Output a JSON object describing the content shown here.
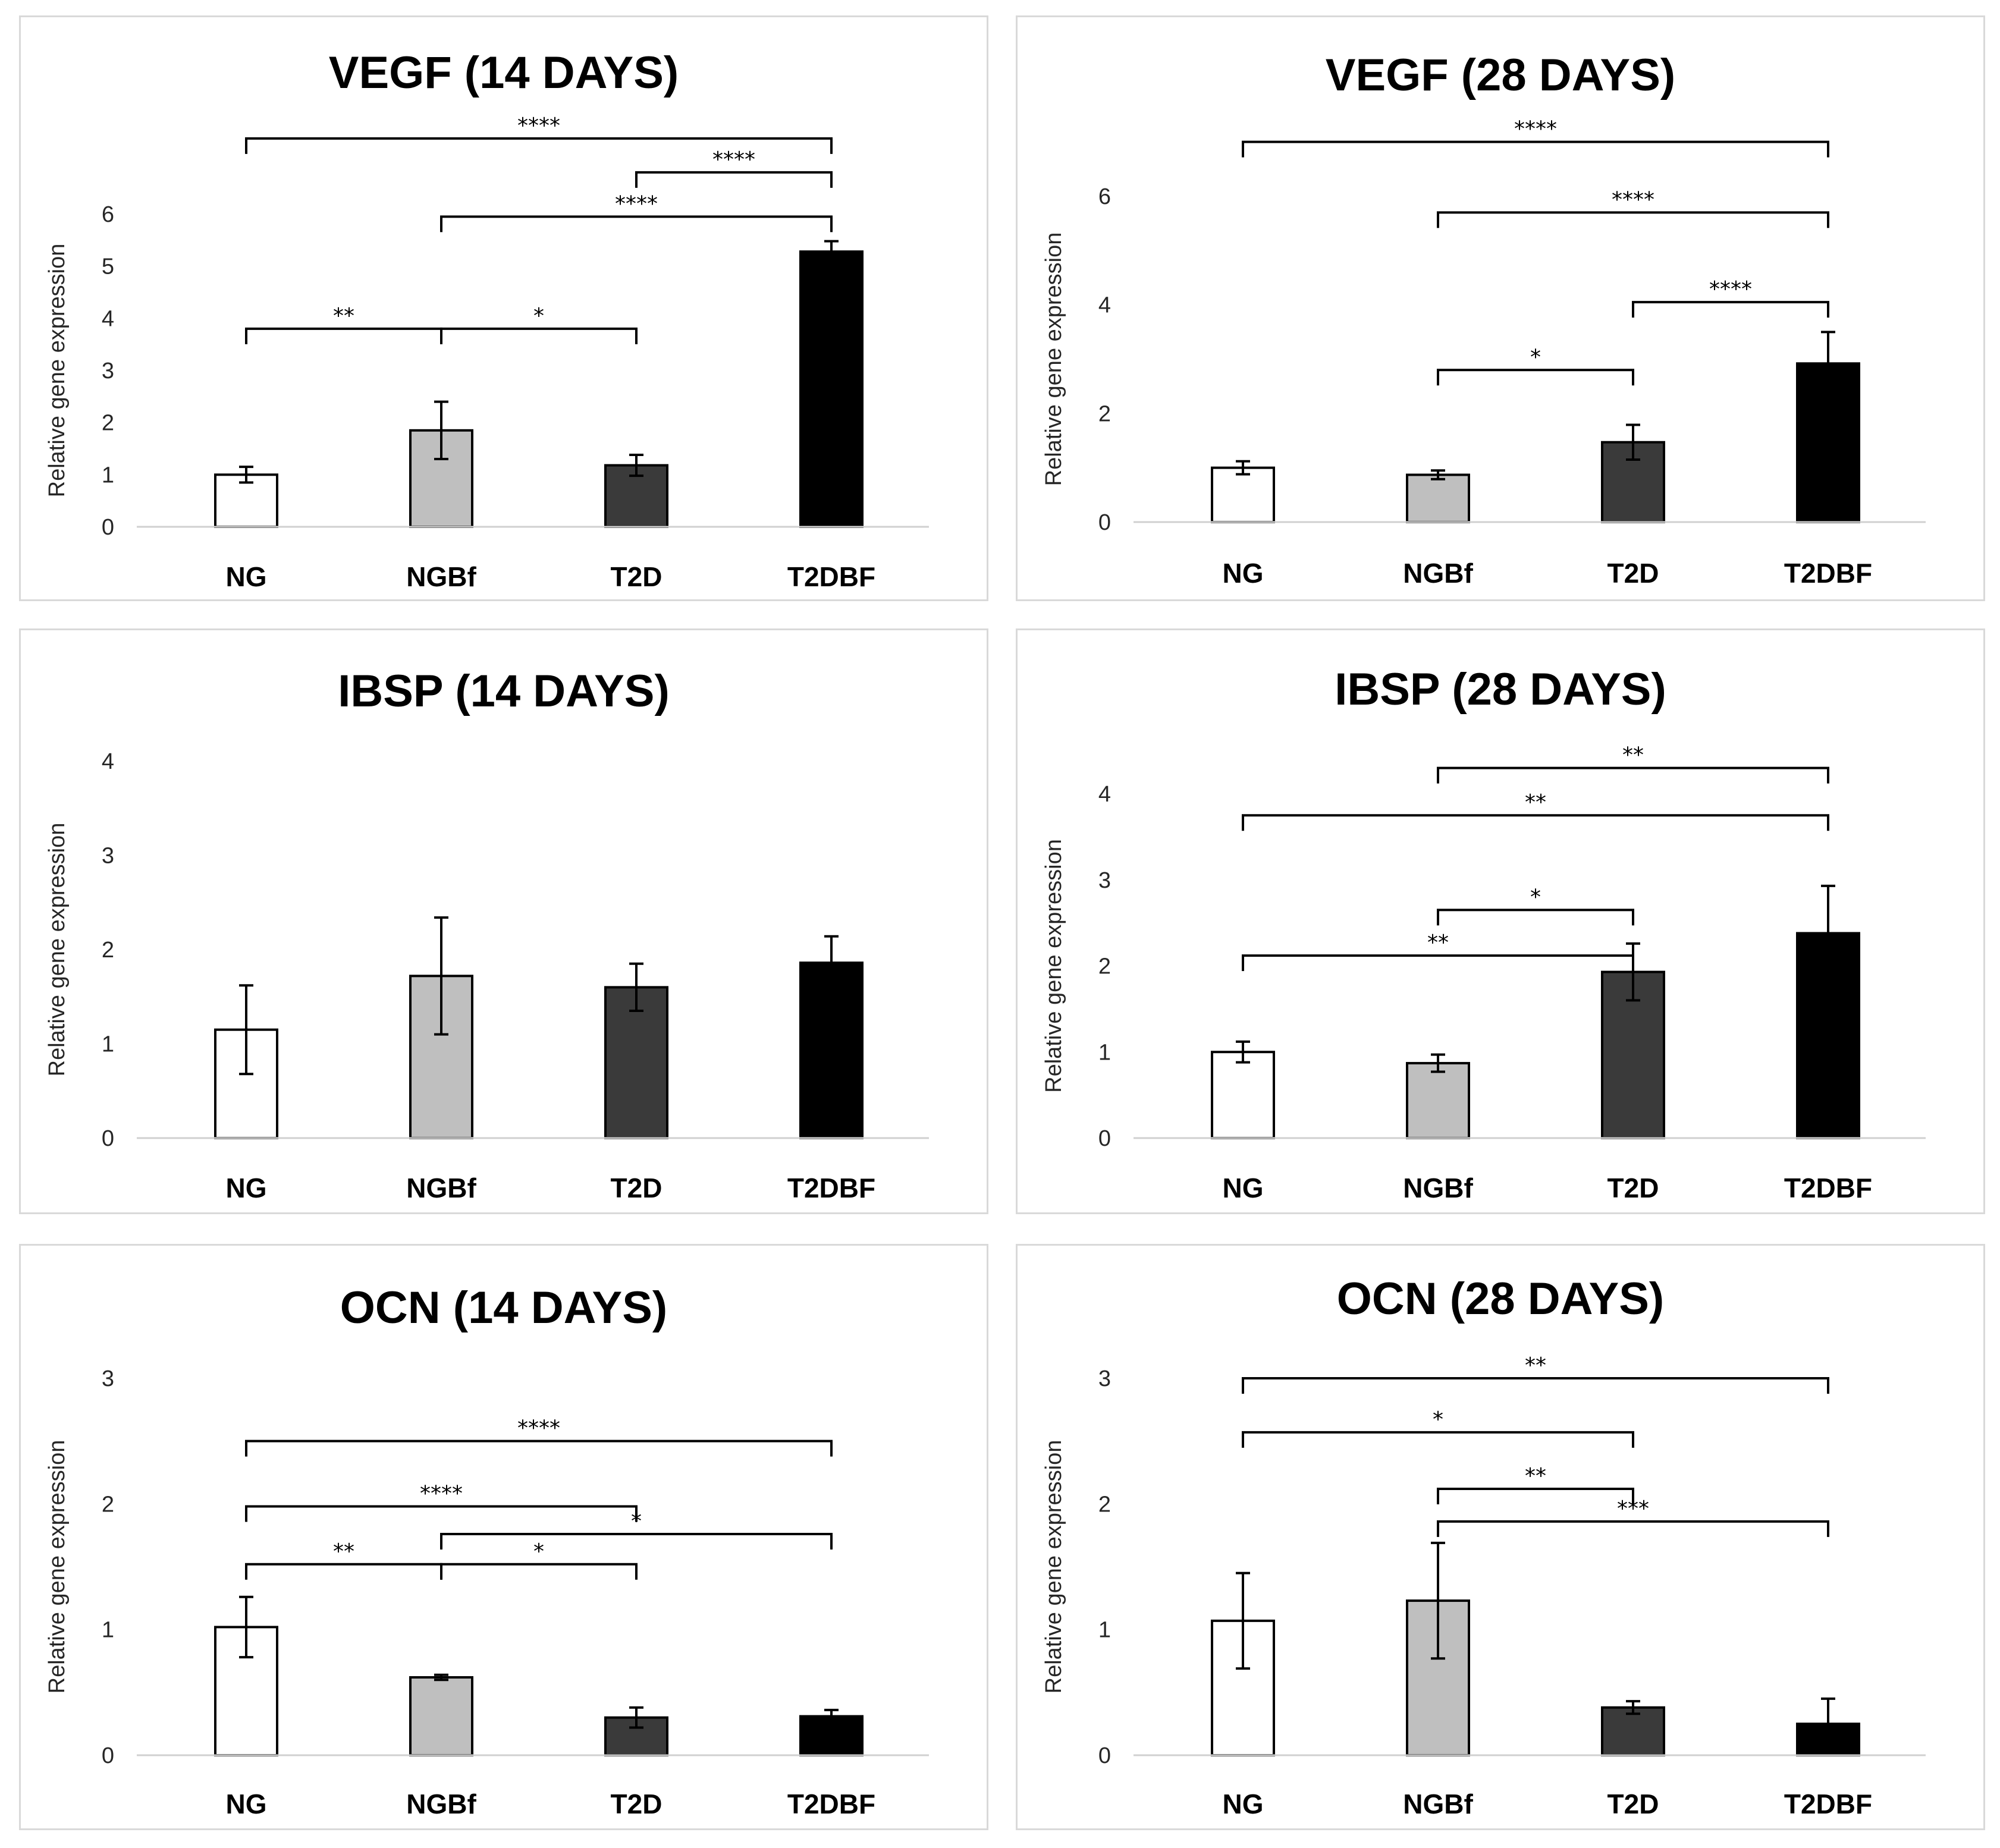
{
  "chart_data": [
    {
      "type": "bar",
      "title": "VEGF (14 DAYS)",
      "ylabel": "Relative gene expression",
      "categories": [
        "NG",
        "NGBf",
        "T2D",
        "T2DBF"
      ],
      "values": [
        1.0,
        1.85,
        1.18,
        5.28
      ],
      "errors": [
        0.15,
        0.55,
        0.2,
        0.2
      ],
      "colors": [
        "#ffffff",
        "#bfbfbf",
        "#3a3a3a",
        "#000000"
      ],
      "ylim": [
        0,
        6
      ],
      "yticks": [
        0,
        1,
        2,
        3,
        4,
        5,
        6
      ],
      "significance": [
        {
          "from": 0,
          "to": 3,
          "y": 7.45,
          "label": "****"
        },
        {
          "from": 2,
          "to": 3,
          "y": 6.8,
          "label": "****"
        },
        {
          "from": 1,
          "to": 3,
          "y": 5.95,
          "label": "****"
        },
        {
          "from": 0,
          "to": 1,
          "y": 3.8,
          "label": "**"
        },
        {
          "from": 1,
          "to": 2,
          "y": 3.8,
          "label": "*"
        }
      ]
    },
    {
      "type": "bar",
      "title": "VEGF (28 DAYS)",
      "ylabel": "Relative gene expression",
      "categories": [
        "NG",
        "NGBf",
        "T2D",
        "T2DBF"
      ],
      "values": [
        1.0,
        0.87,
        1.47,
        2.92
      ],
      "errors": [
        0.12,
        0.08,
        0.32,
        0.58
      ],
      "colors": [
        "#ffffff",
        "#bfbfbf",
        "#3a3a3a",
        "#000000"
      ],
      "ylim": [
        0,
        6
      ],
      "yticks": [
        0,
        2,
        4,
        6
      ],
      "significance": [
        {
          "from": 0,
          "to": 3,
          "y": 7.0,
          "label": "****"
        },
        {
          "from": 1,
          "to": 3,
          "y": 5.7,
          "label": "****"
        },
        {
          "from": 2,
          "to": 3,
          "y": 4.05,
          "label": "****"
        },
        {
          "from": 1,
          "to": 2,
          "y": 2.8,
          "label": "*"
        }
      ]
    },
    {
      "type": "bar",
      "title": "IBSP (14 DAYS)",
      "ylabel": "Relative gene expression",
      "categories": [
        "NG",
        "NGBf",
        "T2D",
        "T2DBF"
      ],
      "values": [
        1.15,
        1.72,
        1.6,
        1.86
      ],
      "errors": [
        0.47,
        0.62,
        0.25,
        0.28
      ],
      "colors": [
        "#ffffff",
        "#bfbfbf",
        "#3a3a3a",
        "#000000"
      ],
      "ylim": [
        0,
        4
      ],
      "yticks": [
        0,
        1,
        2,
        3,
        4
      ],
      "significance": []
    },
    {
      "type": "bar",
      "title": "IBSP (28 DAYS)",
      "ylabel": "Relative gene expression",
      "categories": [
        "NG",
        "NGBf",
        "T2D",
        "T2DBF"
      ],
      "values": [
        1.0,
        0.87,
        1.93,
        2.38
      ],
      "errors": [
        0.12,
        0.1,
        0.33,
        0.55
      ],
      "colors": [
        "#ffffff",
        "#bfbfbf",
        "#3a3a3a",
        "#000000"
      ],
      "ylim": [
        0,
        4
      ],
      "yticks": [
        0,
        1,
        2,
        3,
        4
      ],
      "significance": [
        {
          "from": 1,
          "to": 3,
          "y": 4.3,
          "label": "**"
        },
        {
          "from": 0,
          "to": 3,
          "y": 3.75,
          "label": "**"
        },
        {
          "from": 1,
          "to": 2,
          "y": 2.65,
          "label": "*"
        },
        {
          "from": 0,
          "to": 2,
          "y": 2.12,
          "label": "**"
        }
      ]
    },
    {
      "type": "bar",
      "title": "OCN (14 DAYS)",
      "ylabel": "Relative gene expression",
      "categories": [
        "NG",
        "NGBf",
        "T2D",
        "T2DBF"
      ],
      "values": [
        1.02,
        0.62,
        0.3,
        0.31
      ],
      "errors": [
        0.24,
        0.02,
        0.08,
        0.05
      ],
      "colors": [
        "#ffffff",
        "#bfbfbf",
        "#3a3a3a",
        "#000000"
      ],
      "ylim": [
        0,
        3
      ],
      "yticks": [
        0,
        1,
        2,
        3
      ],
      "significance": [
        {
          "from": 0,
          "to": 3,
          "y": 2.5,
          "label": "****"
        },
        {
          "from": 0,
          "to": 2,
          "y": 1.98,
          "label": "****"
        },
        {
          "from": 1,
          "to": 3,
          "y": 1.76,
          "label": "*"
        },
        {
          "from": 0,
          "to": 1,
          "y": 1.52,
          "label": "**"
        },
        {
          "from": 1,
          "to": 2,
          "y": 1.52,
          "label": "*"
        }
      ]
    },
    {
      "type": "bar",
      "title": "OCN (28 DAYS)",
      "ylabel": "Relative gene expression",
      "categories": [
        "NG",
        "NGBf",
        "T2D",
        "T2DBF"
      ],
      "values": [
        1.07,
        1.23,
        0.38,
        0.25
      ],
      "errors": [
        0.38,
        0.46,
        0.05,
        0.2
      ],
      "colors": [
        "#ffffff",
        "#bfbfbf",
        "#3a3a3a",
        "#000000"
      ],
      "ylim": [
        0,
        3
      ],
      "yticks": [
        0,
        1,
        2,
        3
      ],
      "significance": [
        {
          "from": 0,
          "to": 3,
          "y": 3.0,
          "label": "**"
        },
        {
          "from": 0,
          "to": 2,
          "y": 2.57,
          "label": "*"
        },
        {
          "from": 1,
          "to": 2,
          "y": 2.12,
          "label": "**"
        },
        {
          "from": 1,
          "to": 3,
          "y": 1.86,
          "label": "***"
        }
      ]
    }
  ]
}
